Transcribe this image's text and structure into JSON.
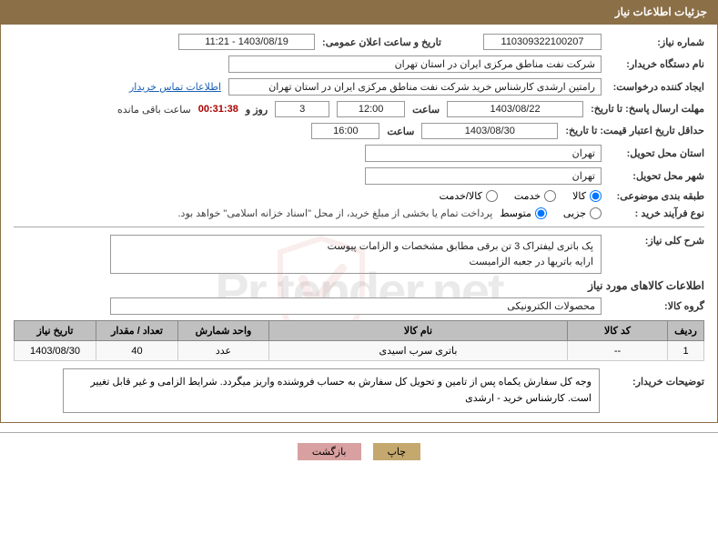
{
  "header": {
    "title": "جزئیات اطلاعات نیاز"
  },
  "need_number": {
    "label": "شماره نیاز:",
    "value": "110309322100207"
  },
  "announce_datetime": {
    "label": "تاریخ و ساعت اعلان عمومی:",
    "value": "1403/08/19 - 11:21"
  },
  "buyer_org": {
    "label": "نام دستگاه خریدار:",
    "value": "شرکت نفت مناطق مرکزی ایران در استان تهران"
  },
  "requester": {
    "label": "ایجاد کننده درخواست:",
    "value": "رامتین ارشدی کارشناس خرید شرکت نفت مناطق مرکزی ایران در استان تهران"
  },
  "contact_link": "اطلاعات تماس خریدار",
  "reply_deadline": {
    "label": "مهلت ارسال پاسخ: تا تاریخ:",
    "date": "1403/08/22",
    "time_label": "ساعت",
    "time": "12:00",
    "days": "3",
    "days_label": "روز و",
    "timer": "00:31:38",
    "remaining_label": "ساعت باقی مانده"
  },
  "price_validity": {
    "label": "حداقل تاریخ اعتبار قیمت: تا تاریخ:",
    "date": "1403/08/30",
    "time_label": "ساعت",
    "time": "16:00"
  },
  "delivery_province": {
    "label": "استان محل تحویل:",
    "value": "تهران"
  },
  "delivery_city": {
    "label": "شهر محل تحویل:",
    "value": "تهران"
  },
  "subject_class": {
    "label": "طبقه بندی موضوعی:",
    "options": {
      "goods": "کالا",
      "service": "خدمت",
      "both": "کالا/خدمت"
    },
    "selected": "goods"
  },
  "purchase_type": {
    "label": "نوع فرآیند خرید :",
    "options": {
      "partial": "جزیی",
      "medium": "متوسط"
    },
    "selected": "medium",
    "note": "پرداخت تمام یا بخشی از مبلغ خرید، از محل \"اسناد خزانه اسلامی\" خواهد بود."
  },
  "general_desc": {
    "label": "شرح کلی نیاز:",
    "value": "پک باتری لیفتراک 3 تن برقی مطابق مشخصات و الزامات پیوست\nارایه باتریها در جعبه الزامیست"
  },
  "goods_section_title": "اطلاعات کالاهای مورد نیاز",
  "goods_group": {
    "label": "گروه کالا:",
    "value": "محصولات الکترونیکی"
  },
  "table": {
    "headers": {
      "row": "ردیف",
      "code": "کد کالا",
      "name": "نام کالا",
      "unit": "واحد شمارش",
      "qty": "تعداد / مقدار",
      "date": "تاریخ نیاز"
    },
    "rows": [
      {
        "row": "1",
        "code": "--",
        "name": "باتری سرب اسیدی",
        "unit": "عدد",
        "qty": "40",
        "date": "1403/08/30"
      }
    ]
  },
  "buyer_notes": {
    "label": "توضیحات خریدار:",
    "value": "وجه کل سفارش یکماه پس از تامین و تحویل کل سفارش به حساب فروشنده واریز میگردد. شرایط الزامی و غیر قابل تغییر است. کارشناس خرید - ارشدی"
  },
  "buttons": {
    "print": "چاپ",
    "back": "بازگشت"
  },
  "watermark_text": "Pr  tender.net"
}
